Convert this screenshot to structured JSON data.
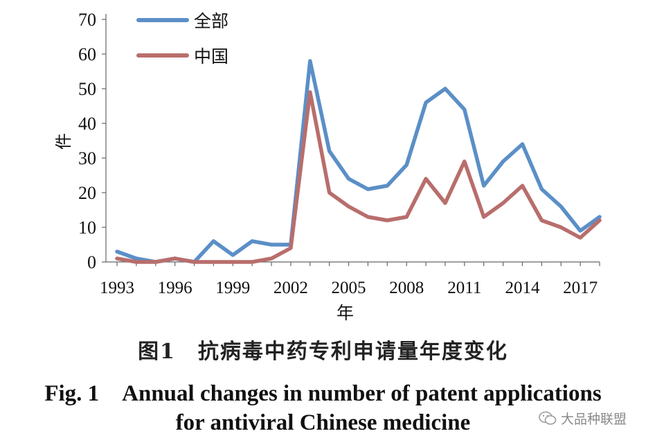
{
  "chart_data": {
    "type": "line",
    "title": "",
    "xlabel": "年",
    "ylabel": "件",
    "ylim": [
      0,
      70
    ],
    "yticks": [
      0,
      10,
      20,
      30,
      40,
      50,
      60,
      70
    ],
    "x": [
      1993,
      1994,
      1995,
      1996,
      1997,
      1998,
      1999,
      2000,
      2001,
      2002,
      2003,
      2004,
      2005,
      2006,
      2007,
      2008,
      2009,
      2010,
      2011,
      2012,
      2013,
      2014,
      2015,
      2016,
      2017,
      2018
    ],
    "xtick_labels": [
      "1993",
      "1996",
      "1999",
      "2002",
      "2005",
      "2008",
      "2011",
      "2014",
      "2017"
    ],
    "legend_position": "top-left",
    "series": [
      {
        "name": "全部",
        "color": "#5b8fc7",
        "values": [
          3,
          1,
          0,
          1,
          0,
          6,
          2,
          6,
          5,
          5,
          58,
          32,
          24,
          21,
          22,
          28,
          46,
          50,
          44,
          22,
          29,
          34,
          21,
          16,
          9,
          13
        ]
      },
      {
        "name": "中国",
        "color": "#b86e6c",
        "values": [
          1,
          0,
          0,
          1,
          0,
          0,
          0,
          0,
          1,
          4,
          49,
          20,
          16,
          13,
          12,
          13,
          24,
          17,
          29,
          13,
          17,
          22,
          12,
          10,
          7,
          12
        ]
      }
    ]
  },
  "caption": {
    "zh": "图1　抗病毒中药专利申请量年度变化",
    "en_line1": "Fig. 1　Annual changes in number of patent applications",
    "en_line2": "for antiviral Chinese medicine"
  },
  "watermark": {
    "text": "大品种联盟",
    "icon": "wechat-icon"
  }
}
